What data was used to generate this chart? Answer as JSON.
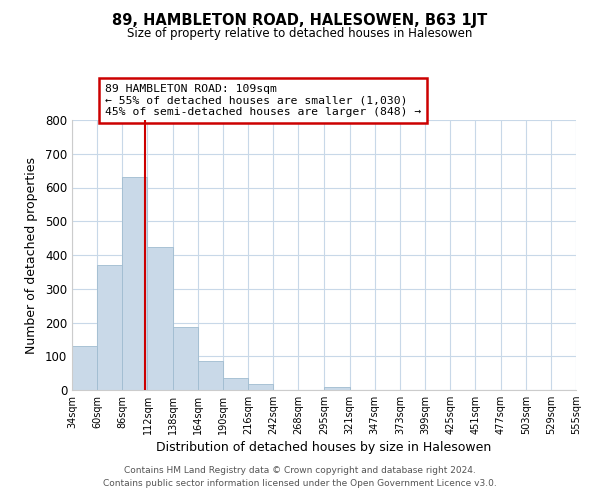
{
  "title": "89, HAMBLETON ROAD, HALESOWEN, B63 1JT",
  "subtitle": "Size of property relative to detached houses in Halesowen",
  "xlabel": "Distribution of detached houses by size in Halesowen",
  "ylabel": "Number of detached properties",
  "bar_edges": [
    34,
    60,
    86,
    112,
    138,
    164,
    190,
    216,
    242,
    268,
    295,
    321,
    347,
    373,
    399,
    425,
    451,
    477,
    503,
    529,
    555
  ],
  "bar_heights": [
    130,
    370,
    630,
    425,
    188,
    85,
    35,
    18,
    0,
    0,
    8,
    0,
    0,
    0,
    0,
    0,
    0,
    0,
    0,
    0
  ],
  "bar_color": "#c9d9e8",
  "bar_edgecolor": "#a0bcd0",
  "property_line_x": 109,
  "property_line_color": "#cc0000",
  "ylim": [
    0,
    800
  ],
  "yticks": [
    0,
    100,
    200,
    300,
    400,
    500,
    600,
    700,
    800
  ],
  "xtick_labels": [
    "34sqm",
    "60sqm",
    "86sqm",
    "112sqm",
    "138sqm",
    "164sqm",
    "190sqm",
    "216sqm",
    "242sqm",
    "268sqm",
    "295sqm",
    "321sqm",
    "347sqm",
    "373sqm",
    "399sqm",
    "425sqm",
    "451sqm",
    "477sqm",
    "503sqm",
    "529sqm",
    "555sqm"
  ],
  "annotation_title": "89 HAMBLETON ROAD: 109sqm",
  "annotation_line1": "← 55% of detached houses are smaller (1,030)",
  "annotation_line2": "45% of semi-detached houses are larger (848) →",
  "annotation_box_color": "#ffffff",
  "annotation_box_edgecolor": "#cc0000",
  "footer_line1": "Contains HM Land Registry data © Crown copyright and database right 2024.",
  "footer_line2": "Contains public sector information licensed under the Open Government Licence v3.0.",
  "background_color": "#ffffff",
  "grid_color": "#c8d8e8"
}
